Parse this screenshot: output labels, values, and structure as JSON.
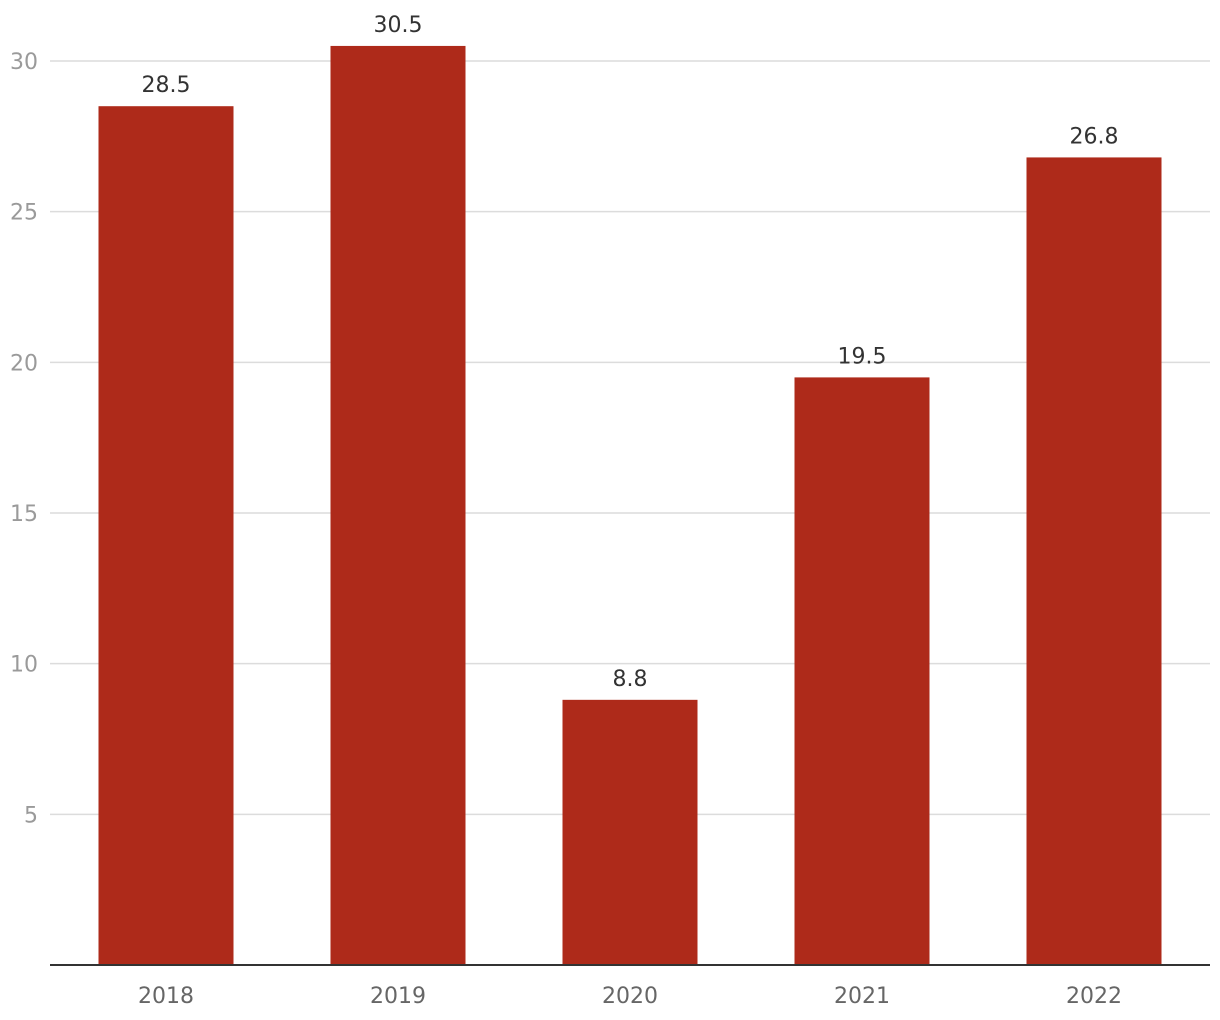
{
  "chart_data": {
    "type": "bar",
    "categories": [
      "2018",
      "2019",
      "2020",
      "2021",
      "2022"
    ],
    "values": [
      28.5,
      30.5,
      8.8,
      19.5,
      26.8
    ],
    "data_labels": [
      "28.5",
      "30.5",
      "8.8",
      "19.5",
      "26.8"
    ],
    "title": "",
    "xlabel": "",
    "ylabel": "",
    "ylim": [
      0,
      30
    ],
    "yticks": [
      5,
      10,
      15,
      20,
      25,
      30
    ],
    "ytick_labels": [
      "5",
      "10",
      "15",
      "20",
      "25",
      "30"
    ],
    "grid": true,
    "legend": "none",
    "colors": {
      "bar": "#ae2a1a",
      "grid": "#dcdcdc",
      "axis": "#333333",
      "tick_text": "#9a9a9a",
      "category_text": "#666666",
      "label_text": "#333333"
    }
  }
}
